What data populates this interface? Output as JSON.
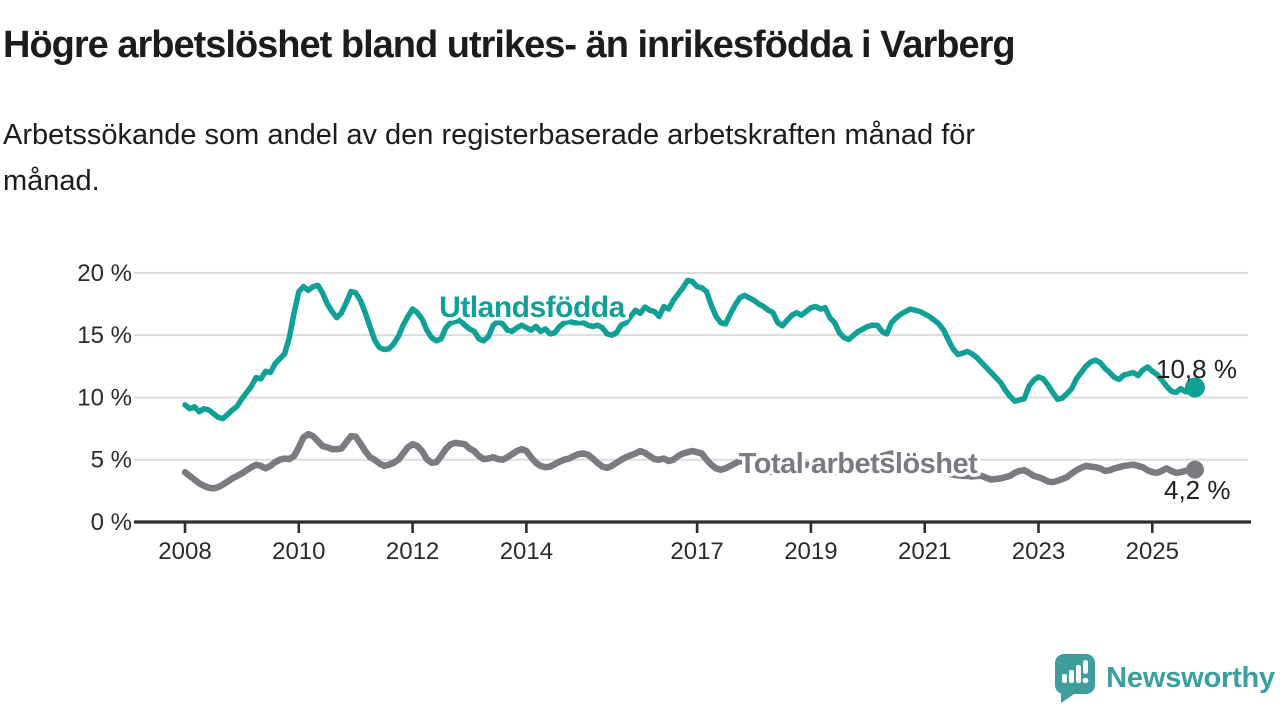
{
  "chart_data": {
    "type": "line",
    "title": "Högre arbetslöshet bland utrikes- än inrikesfödda i Varberg",
    "subtitle_lines": [
      "Arbetssökande som andel av den registerbaserade arbetskraften månad för",
      "månad."
    ],
    "unit": "%",
    "x_axis": {
      "domain": [
        2008,
        2025.75
      ],
      "ticks": [
        2008,
        2010,
        2012,
        2014,
        2017,
        2019,
        2021,
        2023,
        2025
      ]
    },
    "y_axis": {
      "domain": [
        0,
        20
      ],
      "ticks": [
        {
          "value": 0,
          "label": "0 %"
        },
        {
          "value": 5,
          "label": "5 %"
        },
        {
          "value": 10,
          "label": "10 %"
        },
        {
          "value": 15,
          "label": "15 %"
        },
        {
          "value": 20,
          "label": "20 %"
        }
      ]
    },
    "grid": true,
    "legend": "inline-labels",
    "series": [
      {
        "id": "utlandsfodda",
        "name": "Utlandsfödda",
        "color": "#10A096",
        "start_year": 2008,
        "interval_months": 1,
        "end_label": "10,8 %",
        "values": [
          9.4,
          9.1,
          9.25,
          8.85,
          9.1,
          9.0,
          8.7,
          8.4,
          8.3,
          8.65,
          9.0,
          9.3,
          9.9,
          10.4,
          10.9,
          11.6,
          11.5,
          12.1,
          12.0,
          12.7,
          13.1,
          13.5,
          14.8,
          16.8,
          18.5,
          18.9,
          18.6,
          18.9,
          19.0,
          18.4,
          17.5,
          16.9,
          16.4,
          16.8,
          17.6,
          18.5,
          18.4,
          17.8,
          16.8,
          15.7,
          14.6,
          14.0,
          13.85,
          13.9,
          14.3,
          14.9,
          15.8,
          16.5,
          17.1,
          16.8,
          16.3,
          15.4,
          14.8,
          14.55,
          14.7,
          15.6,
          16.0,
          16.1,
          16.2,
          15.8,
          15.5,
          15.3,
          14.7,
          14.55,
          14.9,
          15.8,
          16.1,
          15.9,
          15.4,
          15.3,
          15.6,
          15.8,
          15.6,
          15.4,
          15.7,
          15.3,
          15.5,
          15.1,
          15.2,
          15.7,
          16.0,
          16.1,
          16.0,
          16.0,
          16.0,
          15.8,
          15.7,
          15.8,
          15.6,
          15.1,
          15.0,
          15.2,
          15.8,
          16.0,
          16.5,
          17.0,
          16.75,
          17.25,
          17.0,
          16.9,
          16.5,
          17.3,
          17.1,
          17.8,
          18.3,
          18.8,
          19.4,
          19.3,
          18.9,
          18.8,
          18.5,
          17.4,
          16.5,
          16.0,
          15.9,
          16.7,
          17.4,
          18.0,
          18.2,
          18.0,
          17.8,
          17.5,
          17.3,
          17.0,
          16.8,
          16.0,
          15.75,
          16.2,
          16.6,
          16.8,
          16.6,
          16.9,
          17.2,
          17.3,
          17.1,
          17.2,
          16.4,
          16.0,
          15.2,
          14.8,
          14.65,
          15.0,
          15.3,
          15.5,
          15.7,
          15.8,
          15.8,
          15.3,
          15.1,
          16.0,
          16.4,
          16.7,
          16.9,
          17.1,
          17.0,
          16.9,
          16.7,
          16.5,
          16.2,
          15.9,
          15.4,
          14.6,
          13.9,
          13.45,
          13.55,
          13.7,
          13.5,
          13.2,
          12.8,
          12.4,
          12.0,
          11.6,
          11.2,
          10.6,
          10.1,
          9.7,
          9.8,
          9.9,
          10.9,
          11.4,
          11.65,
          11.5,
          11.0,
          10.4,
          9.85,
          9.95,
          10.3,
          10.7,
          11.5,
          12.0,
          12.5,
          12.85,
          13.0,
          12.8,
          12.35,
          12.0,
          11.6,
          11.45,
          11.8,
          11.9,
          12.0,
          11.75,
          12.2,
          12.45,
          12.1,
          11.85,
          11.4,
          10.9,
          10.5,
          10.4,
          10.7,
          10.45,
          10.55,
          10.8
        ]
      },
      {
        "id": "total",
        "name": "Total arbetslöshet",
        "color": "#7C7A80",
        "start_year": 2008,
        "interval_months": 1,
        "end_label": "4,2 %",
        "values": [
          4.0,
          3.7,
          3.4,
          3.1,
          2.9,
          2.75,
          2.7,
          2.8,
          3.0,
          3.25,
          3.5,
          3.7,
          3.9,
          4.15,
          4.4,
          4.6,
          4.5,
          4.3,
          4.5,
          4.8,
          5.0,
          5.1,
          5.05,
          5.3,
          6.0,
          6.8,
          7.05,
          6.9,
          6.5,
          6.1,
          6.0,
          5.85,
          5.85,
          5.9,
          6.4,
          6.9,
          6.85,
          6.3,
          5.7,
          5.2,
          5.0,
          4.7,
          4.5,
          4.6,
          4.75,
          5.0,
          5.5,
          6.0,
          6.25,
          6.1,
          5.7,
          5.05,
          4.75,
          4.8,
          5.3,
          5.85,
          6.25,
          6.35,
          6.3,
          6.25,
          5.9,
          5.7,
          5.3,
          5.05,
          5.1,
          5.2,
          5.05,
          5.0,
          5.2,
          5.45,
          5.7,
          5.85,
          5.7,
          5.2,
          4.75,
          4.5,
          4.4,
          4.45,
          4.65,
          4.85,
          5.0,
          5.1,
          5.3,
          5.45,
          5.5,
          5.4,
          5.1,
          4.75,
          4.45,
          4.35,
          4.5,
          4.75,
          5.0,
          5.2,
          5.35,
          5.5,
          5.7,
          5.55,
          5.3,
          5.05,
          5.0,
          5.1,
          4.9,
          5.0,
          5.3,
          5.5,
          5.6,
          5.7,
          5.6,
          5.5,
          5.0,
          4.6,
          4.3,
          4.2,
          4.3,
          4.5,
          4.7,
          4.9,
          4.8,
          4.9,
          4.8,
          4.6,
          4.3,
          4.1,
          4.0,
          4.1,
          4.2,
          4.4,
          4.5,
          4.6,
          4.5,
          4.6,
          4.6,
          4.5,
          4.2,
          4.0,
          3.9,
          4.0,
          4.1,
          4.3,
          4.4,
          4.5,
          4.4,
          4.5,
          4.6,
          4.7,
          4.9,
          5.3,
          5.4,
          5.5,
          5.3,
          5.2,
          5.1,
          5.0,
          4.9,
          4.8,
          4.7,
          4.6,
          4.4,
          4.2,
          4.0,
          3.9,
          3.8,
          3.75,
          3.7,
          3.7,
          3.65,
          3.7,
          3.7,
          3.55,
          3.4,
          3.45,
          3.5,
          3.6,
          3.7,
          3.95,
          4.1,
          4.15,
          3.95,
          3.7,
          3.6,
          3.45,
          3.25,
          3.2,
          3.3,
          3.45,
          3.6,
          3.9,
          4.15,
          4.35,
          4.5,
          4.45,
          4.4,
          4.3,
          4.1,
          4.15,
          4.3,
          4.4,
          4.5,
          4.55,
          4.6,
          4.5,
          4.4,
          4.15,
          4.0,
          3.95,
          4.1,
          4.3,
          4.1,
          3.95,
          4.0,
          4.1,
          4.2,
          4.2
        ]
      }
    ]
  },
  "footer": {
    "logo_text": "Newsworthy"
  },
  "colors": {
    "accent_teal": "#10A096",
    "line_gray": "#7C7A80",
    "grid": "#DCDCDC",
    "axis": "#2E2E2E",
    "tick_text": "#2B2B2B",
    "end_label_text": "#1F1F1F",
    "logo": "#38A19F"
  }
}
